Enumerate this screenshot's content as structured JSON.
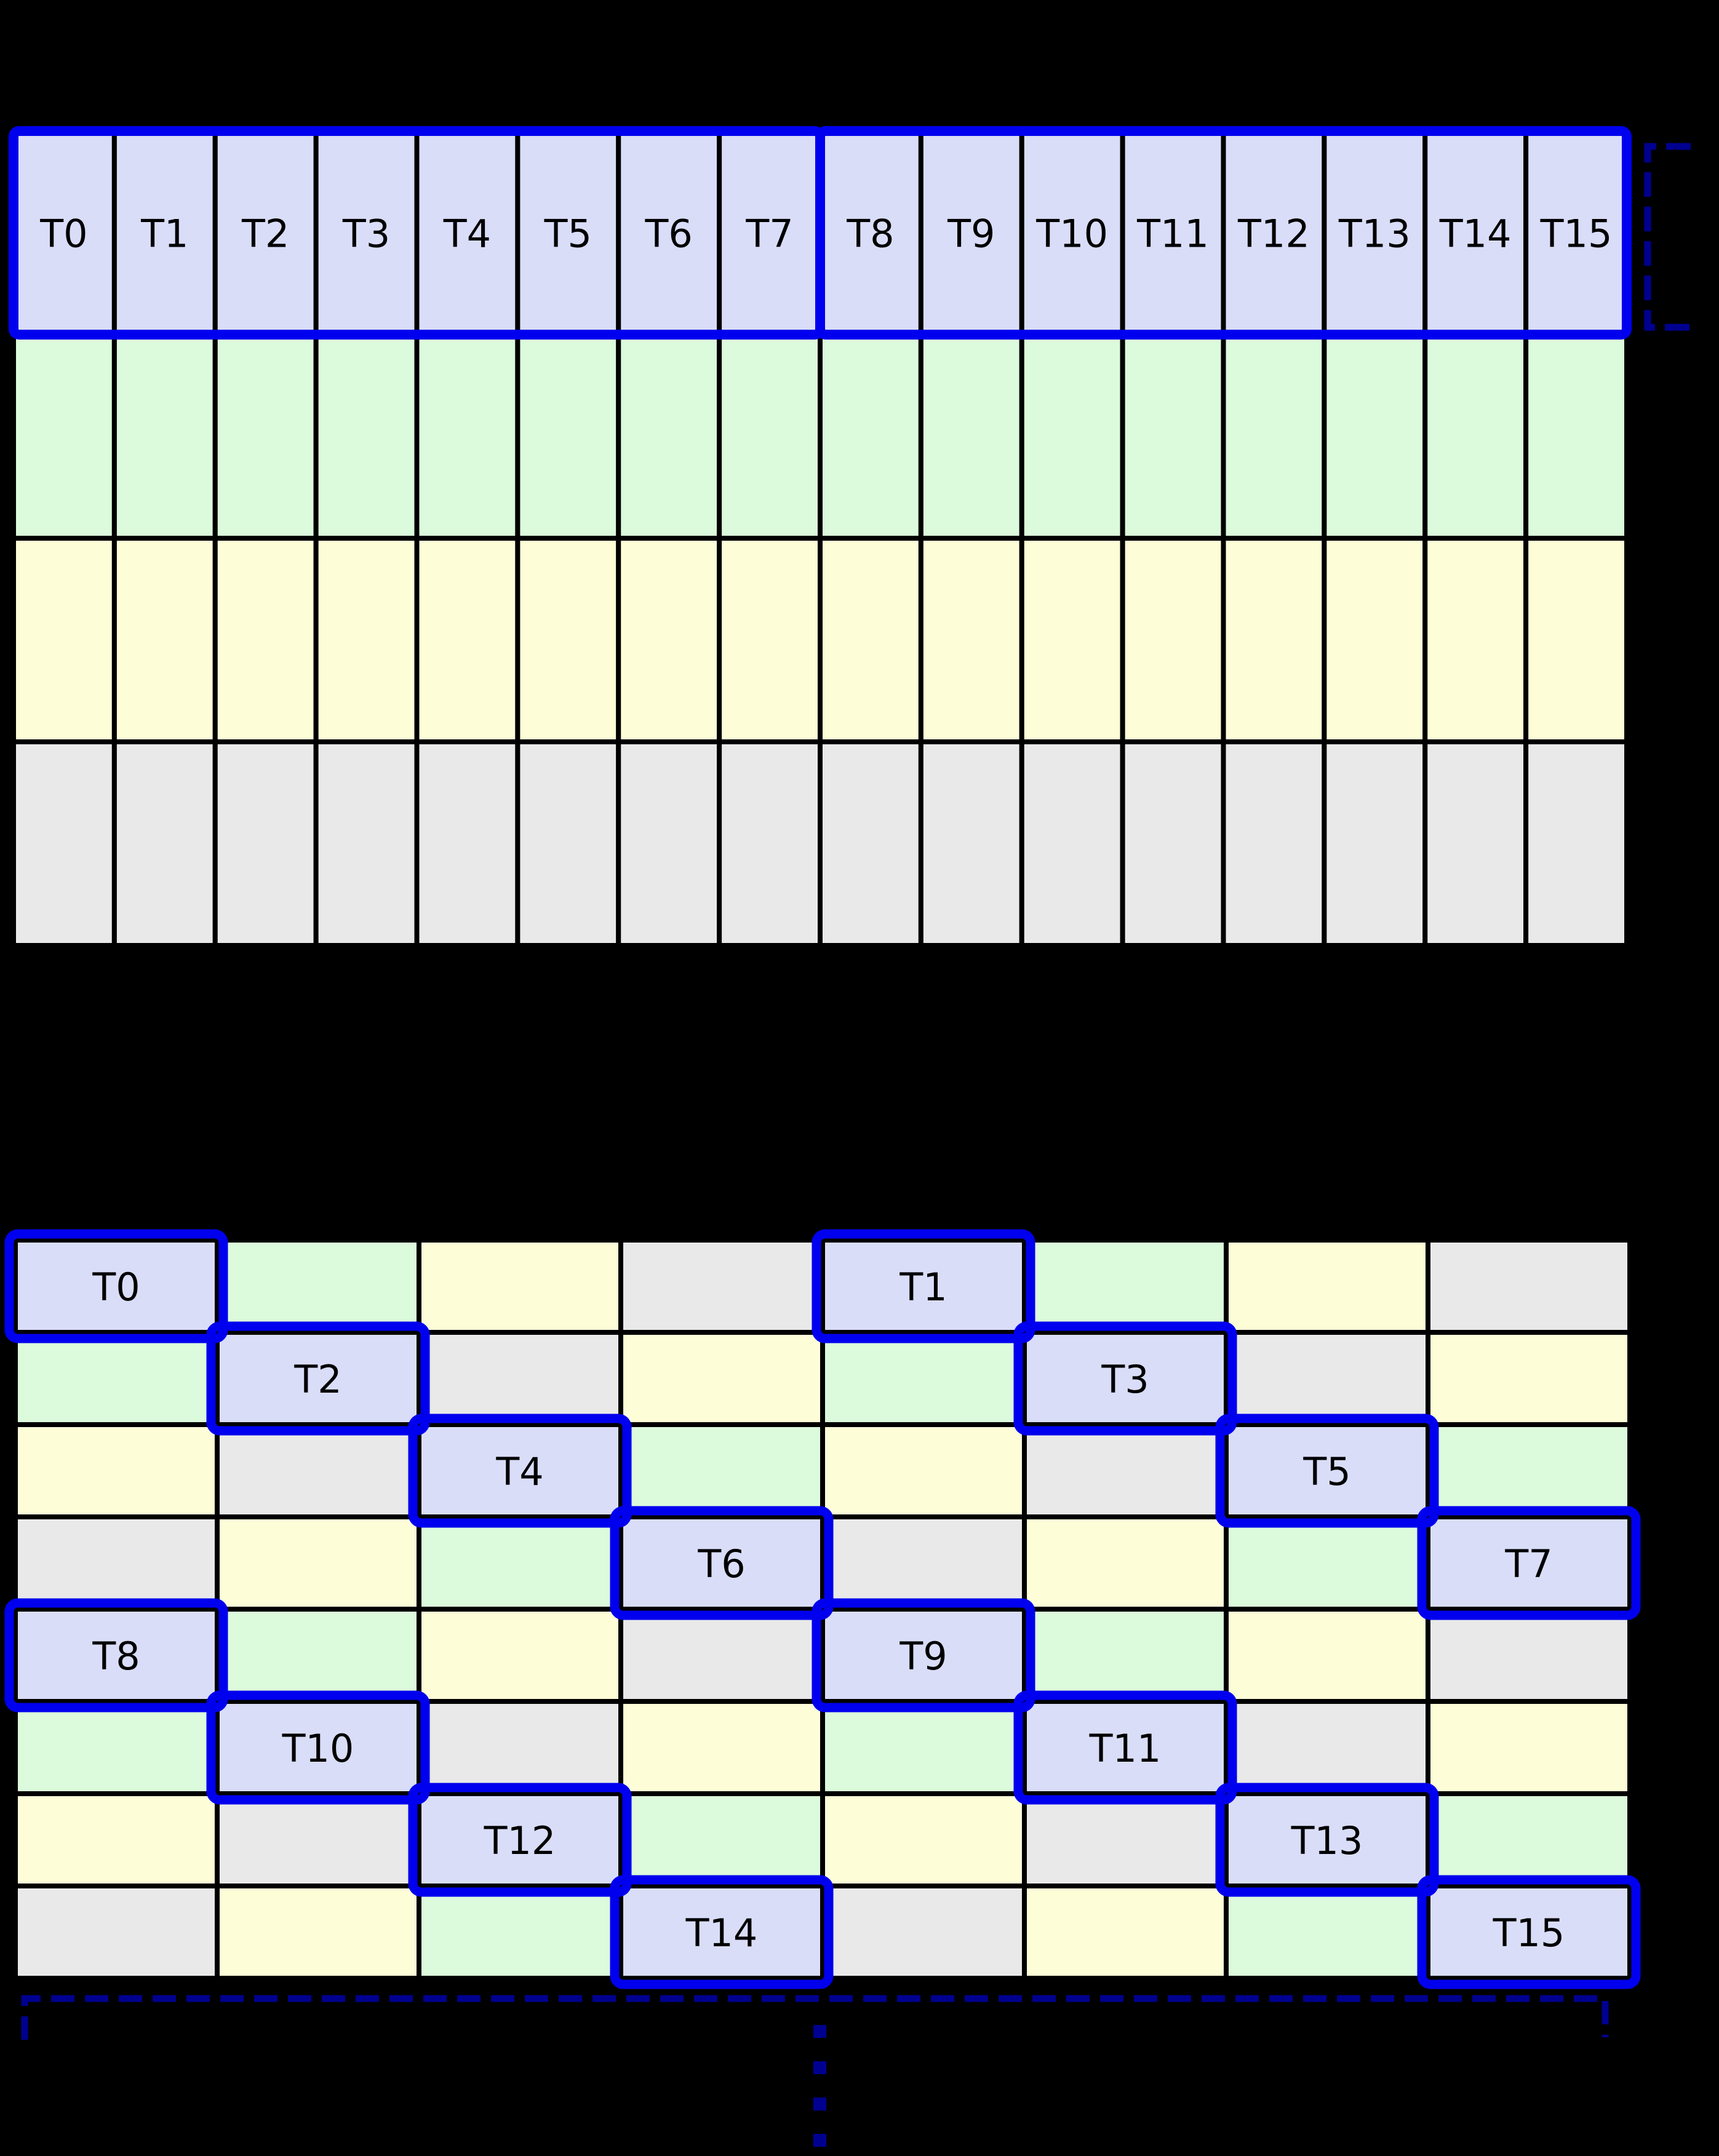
{
  "figure": {
    "background_color": "#000000",
    "colors": {
      "thread_cell": "#d9ddf8",
      "green_cell": "#dcfadc",
      "yellow_cell": "#fdfdd8",
      "gray_cell": "#e9e9e9",
      "grid_line": "#000000",
      "highlight_border": "#0000ee",
      "bracket": "#000090",
      "label_text": "#000000"
    },
    "top_grid": {
      "rows": 4,
      "cols": 16,
      "row_colors": [
        "thread_cell",
        "green_cell",
        "yellow_cell",
        "gray_cell"
      ],
      "label_row": 0,
      "thread_labels": [
        "T0",
        "T1",
        "T2",
        "T3",
        "T4",
        "T5",
        "T6",
        "T7",
        "T8",
        "T9",
        "T10",
        "T11",
        "T12",
        "T13",
        "T14",
        "T15"
      ],
      "highlight_groups": [
        {
          "first_col": 0,
          "last_col": 7
        },
        {
          "first_col": 8,
          "last_col": 15
        }
      ]
    },
    "bottom_grid": {
      "rows": 8,
      "cols": 8,
      "color_cycle": [
        [
          "thread_cell",
          "green_cell",
          "yellow_cell",
          "gray_cell"
        ],
        [
          "green_cell",
          "thread_cell",
          "gray_cell",
          "yellow_cell"
        ],
        [
          "yellow_cell",
          "gray_cell",
          "thread_cell",
          "green_cell"
        ],
        [
          "gray_cell",
          "yellow_cell",
          "green_cell",
          "thread_cell"
        ]
      ],
      "threads": [
        {
          "label": "T0",
          "row": 0,
          "col": 0
        },
        {
          "label": "T1",
          "row": 0,
          "col": 4
        },
        {
          "label": "T2",
          "row": 1,
          "col": 1
        },
        {
          "label": "T3",
          "row": 1,
          "col": 5
        },
        {
          "label": "T4",
          "row": 2,
          "col": 2
        },
        {
          "label": "T5",
          "row": 2,
          "col": 6
        },
        {
          "label": "T6",
          "row": 3,
          "col": 3
        },
        {
          "label": "T7",
          "row": 3,
          "col": 7
        },
        {
          "label": "T8",
          "row": 4,
          "col": 0
        },
        {
          "label": "T9",
          "row": 4,
          "col": 4
        },
        {
          "label": "T10",
          "row": 5,
          "col": 1
        },
        {
          "label": "T11",
          "row": 5,
          "col": 5
        },
        {
          "label": "T12",
          "row": 6,
          "col": 2
        },
        {
          "label": "T13",
          "row": 6,
          "col": 6
        },
        {
          "label": "T14",
          "row": 7,
          "col": 3
        },
        {
          "label": "T15",
          "row": 7,
          "col": 7
        }
      ]
    },
    "annotations": {
      "right_bracket_icon": "dashed-square-bracket",
      "bottom_bracket_icon": "dashed-extent-bracket",
      "continuation_icon": "vertical-ellipsis",
      "ellipsis_dash_count": 4
    }
  }
}
